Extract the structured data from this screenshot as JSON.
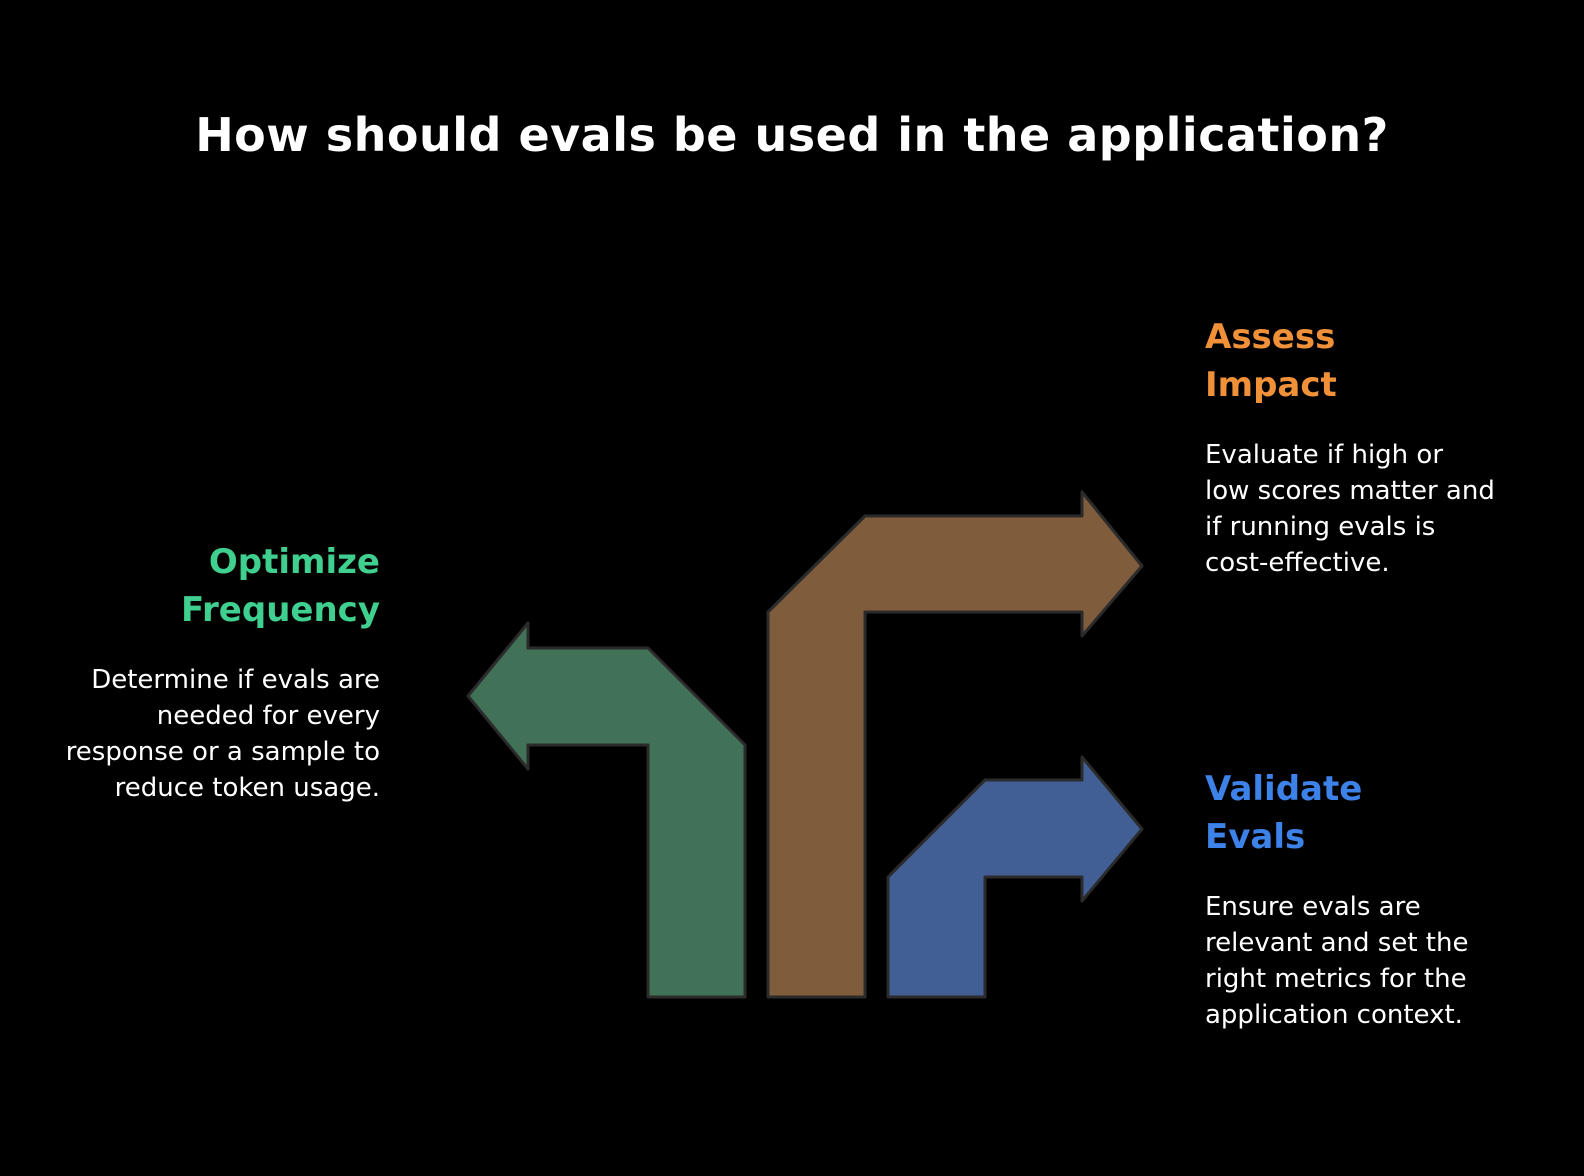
{
  "title": "How should evals be used in the application?",
  "colors": {
    "green_arrow": "#417258",
    "brown_arrow": "#7f5c3c",
    "blue_arrow": "#415f94",
    "arrow_stroke": "#2b2b2b",
    "green_text": "#3fcf8e",
    "orange_text": "#f0913a",
    "blue_text": "#3d82e8"
  },
  "items": {
    "optimize": {
      "heading_line1": "Optimize",
      "heading_line2": "Frequency",
      "description": "Determine if evals are needed for every response or a sample to reduce token usage."
    },
    "assess": {
      "heading_line1": "Assess",
      "heading_line2": "Impact",
      "description": "Evaluate if high or low scores matter and if running evals is cost-effective."
    },
    "validate": {
      "heading_line1": "Validate",
      "heading_line2": "Evals",
      "description": "Ensure evals are relevant and set the right metrics for the application context."
    }
  }
}
